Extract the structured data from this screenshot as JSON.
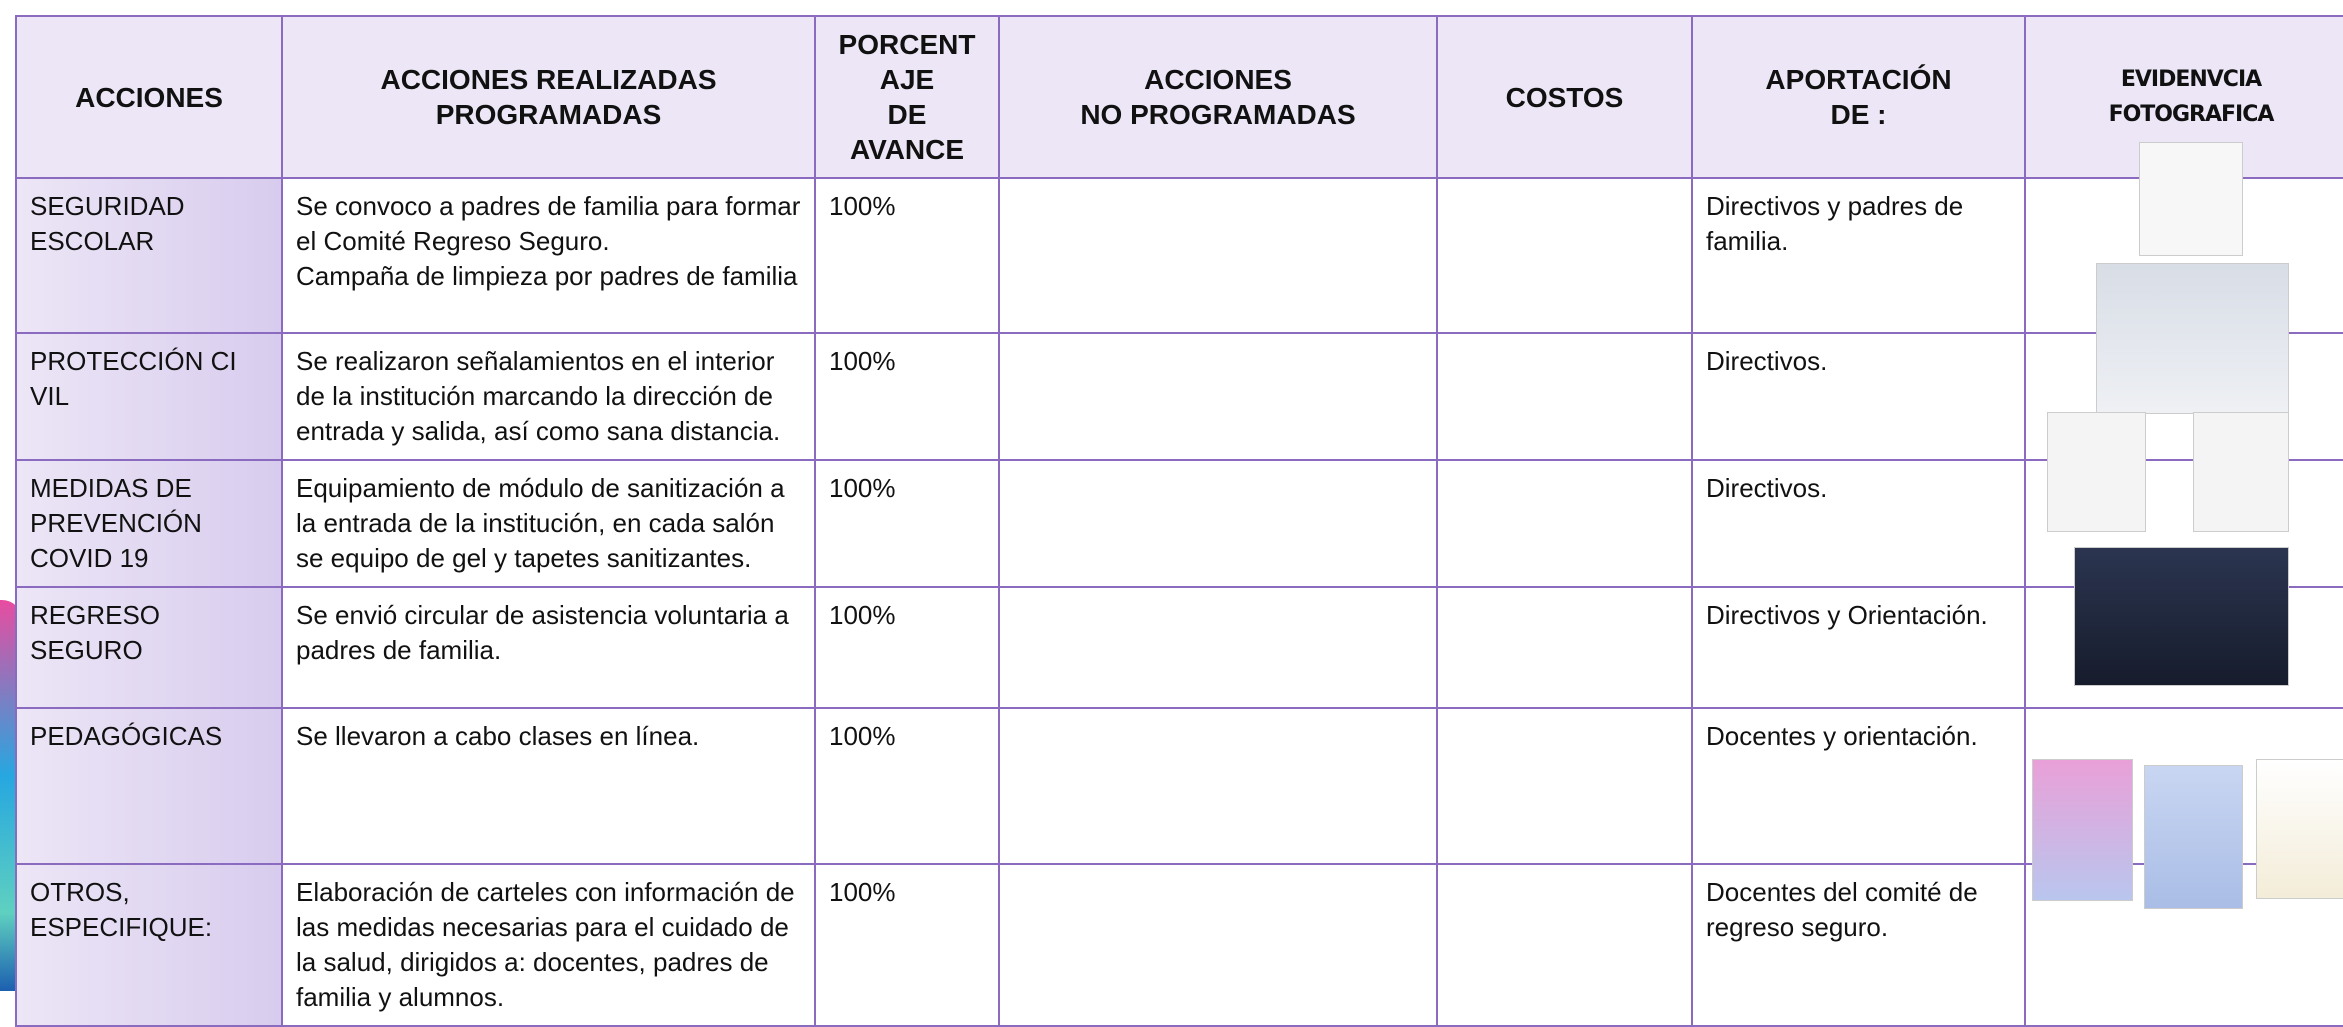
{
  "table": {
    "headers": [
      "ACCIONES",
      "ACCIONES REALIZADAS\nPROGRAMADAS",
      "PORCENT\nAJE\nDE\nAVANCE",
      "ACCIONES\nNO PROGRAMADAS",
      "COSTOS",
      "APORTACIÓN\nDE :",
      "EVIDENVCIA FOTOGRAFICA"
    ],
    "rows": [
      {
        "accion": "SEGURIDAD\nESCOLAR",
        "realizadas": "Se convoco a padres de familia para formar el Comité Regreso Seguro.\nCampaña de limpieza por padres de familia",
        "porcentaje": "100%",
        "aportacion": "Directivos y padres de familia."
      },
      {
        "accion": "PROTECCIÓN CI\nVIL",
        "realizadas": "Se realizaron señalamientos en el interior de la institución marcando la dirección de entrada y salida, así como sana distancia.",
        "porcentaje": "100%",
        "aportacion": "Directivos."
      },
      {
        "accion": "MEDIDAS DE\nPREVENCIÓN\nCOVID 19",
        "realizadas": "Equipamiento de módulo de sanitización a la entrada de la institución, en cada salón se equipo de gel y tapetes sanitizantes.",
        "porcentaje": "100%",
        "aportacion": "Directivos."
      },
      {
        "accion": "REGRESO\nSEGURO",
        "realizadas": "Se envió circular de asistencia voluntaria a padres de familia.",
        "porcentaje": "100%",
        "aportacion": "Directivos y Orientación."
      },
      {
        "accion": "PEDAGÓGICAS",
        "realizadas": "Se llevaron a cabo clases en línea.",
        "porcentaje": "100%",
        "aportacion": "Docentes y orientación."
      },
      {
        "accion": "OTROS,\nESPECIFIQUE:",
        "realizadas": "Elaboración de carteles con información de las medidas necesarias para el cuidado de la salud, dirigidos a:  docentes, padres de familia y alumnos.",
        "porcentaje": "100%",
        "aportacion": "Docentes del comité de regreso seguro."
      }
    ]
  }
}
